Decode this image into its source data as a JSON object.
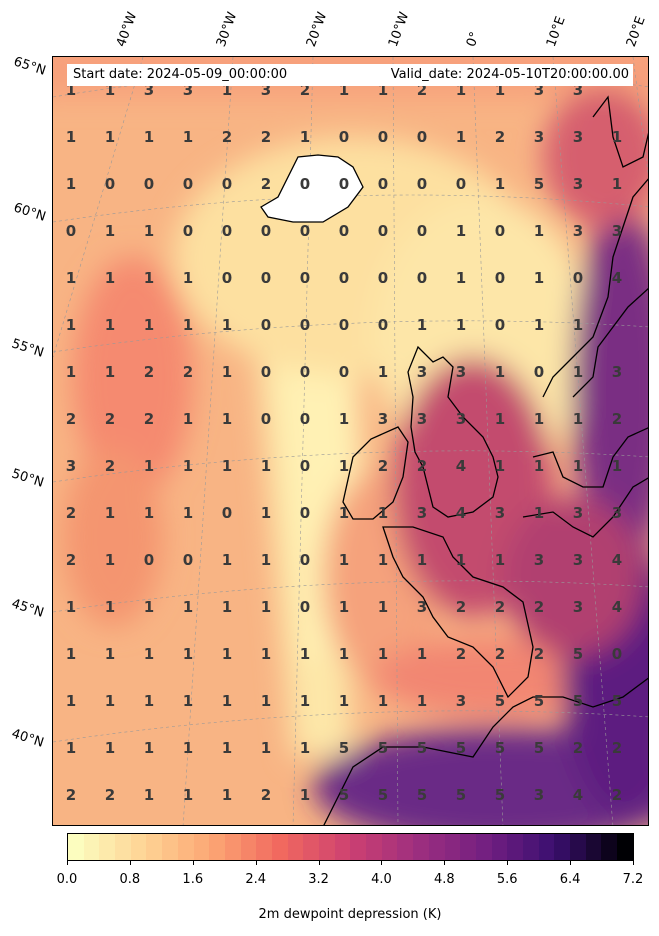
{
  "header": {
    "start": "Start date: 2024-05-09_00:00:00",
    "valid": "Valid_date: 2024-05-10T20:00:00.00"
  },
  "lat_labels": [
    "65°N",
    "60°N",
    "55°N",
    "50°N",
    "45°N",
    "40°N"
  ],
  "lon_labels": [
    "40°W",
    "30°W",
    "20°W",
    "10°W",
    "0°",
    "10°E",
    "20°E"
  ],
  "grid_values": [
    [
      1,
      1,
      3,
      3,
      1,
      3,
      2,
      1,
      1,
      2,
      1,
      1,
      3,
      3,
      null
    ],
    [
      1,
      1,
      1,
      1,
      2,
      2,
      1,
      0,
      0,
      0,
      1,
      2,
      3,
      3,
      1
    ],
    [
      1,
      0,
      0,
      0,
      0,
      2,
      0,
      0,
      0,
      0,
      0,
      1,
      5,
      3,
      1
    ],
    [
      0,
      1,
      1,
      0,
      0,
      0,
      0,
      0,
      0,
      0,
      1,
      0,
      1,
      3,
      3
    ],
    [
      1,
      1,
      1,
      1,
      0,
      0,
      0,
      0,
      0,
      0,
      1,
      0,
      1,
      0,
      4
    ],
    [
      1,
      1,
      1,
      1,
      1,
      0,
      0,
      0,
      0,
      1,
      1,
      0,
      1,
      1,
      null
    ],
    [
      1,
      1,
      2,
      2,
      1,
      0,
      0,
      0,
      1,
      3,
      3,
      1,
      0,
      1,
      3
    ],
    [
      2,
      2,
      2,
      1,
      1,
      0,
      0,
      1,
      3,
      3,
      3,
      1,
      1,
      1,
      2
    ],
    [
      3,
      2,
      1,
      1,
      1,
      1,
      0,
      1,
      2,
      2,
      4,
      1,
      1,
      1,
      1
    ],
    [
      2,
      1,
      1,
      1,
      0,
      1,
      0,
      1,
      1,
      3,
      4,
      3,
      1,
      3,
      3
    ],
    [
      2,
      1,
      0,
      0,
      1,
      1,
      0,
      1,
      1,
      1,
      1,
      1,
      3,
      3,
      4
    ],
    [
      1,
      1,
      1,
      1,
      1,
      1,
      0,
      1,
      1,
      3,
      2,
      2,
      2,
      3,
      4
    ],
    [
      1,
      1,
      1,
      1,
      1,
      1,
      1,
      1,
      1,
      1,
      2,
      2,
      2,
      5,
      0
    ],
    [
      1,
      1,
      1,
      1,
      1,
      1,
      1,
      1,
      1,
      1,
      3,
      5,
      5,
      5,
      5
    ],
    [
      1,
      1,
      1,
      1,
      1,
      1,
      1,
      5,
      5,
      5,
      5,
      5,
      5,
      2,
      2
    ],
    [
      2,
      2,
      1,
      1,
      1,
      2,
      1,
      5,
      5,
      5,
      5,
      5,
      3,
      4,
      2
    ]
  ],
  "colorbar": {
    "label": "2m dewpoint depression (K)",
    "ticks": [
      "0.0",
      "0.8",
      "1.6",
      "2.4",
      "3.2",
      "4.0",
      "4.8",
      "5.6",
      "6.4",
      "7.2"
    ],
    "min": 0,
    "max": 7.2,
    "colormap": "magma_r"
  }
}
